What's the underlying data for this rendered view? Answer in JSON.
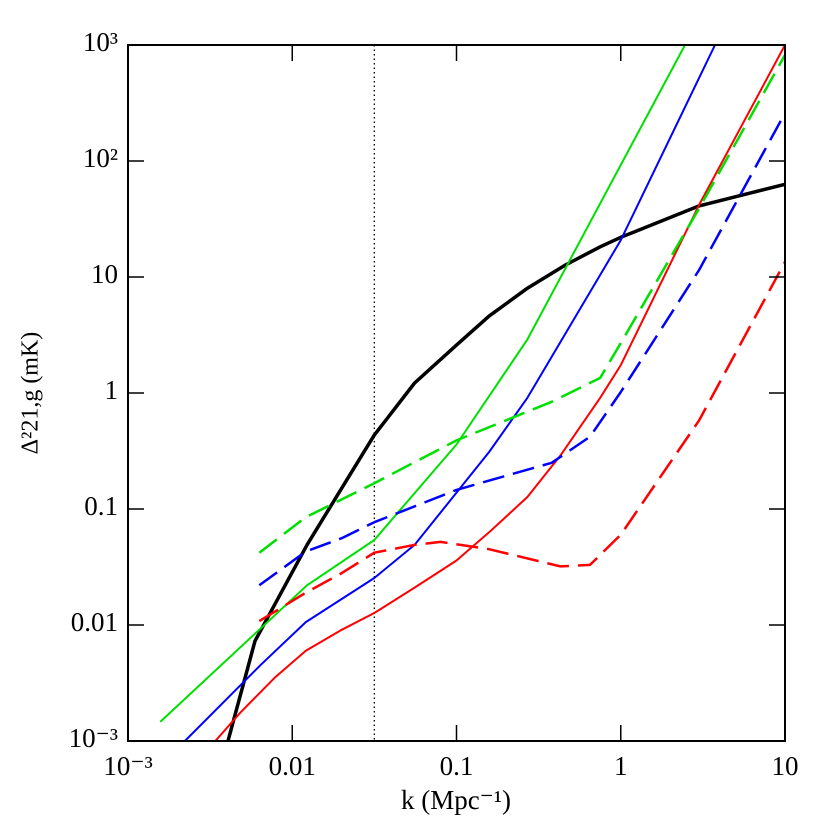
{
  "chart_data": {
    "type": "line",
    "xlabel": "k (Mpc⁻¹)",
    "ylabel": "Δ²21,g (mK)",
    "xscale": "log",
    "yscale": "log",
    "xlim": [
      0.001,
      10
    ],
    "ylim": [
      0.001,
      1000
    ],
    "xticks": [
      {
        "value": 0.001,
        "label": "10⁻³"
      },
      0.01,
      0.1,
      1,
      10
    ],
    "yticks": [
      {
        "value": 0.001,
        "label": "10⁻³"
      },
      0.01,
      0.1,
      1,
      10,
      {
        "value": 100,
        "label": "10²"
      },
      {
        "value": 1000,
        "label": "10³"
      }
    ],
    "vline_x": 0.0316,
    "series": [
      {
        "color": "#000000",
        "width": 3.5,
        "dash": false,
        "x": [
          0.00406,
          0.00593,
          0.0123,
          0.02,
          0.0316,
          0.0556,
          0.1,
          0.158,
          0.27,
          0.46,
          0.75,
          1,
          3.0,
          10
        ],
        "values": [
          0.001,
          0.00728,
          0.049,
          0.151,
          0.434,
          1.22,
          2.59,
          4.6,
          8.0,
          12.7,
          18.2,
          22,
          41,
          63
        ]
      },
      {
        "color": "#00e000",
        "width": 2,
        "dash": false,
        "x": [
          0.00157,
          0.0123,
          0.0316,
          0.1,
          0.27,
          2.46
        ],
        "values": [
          0.00146,
          0.022,
          0.054,
          0.36,
          2.9,
          1000
        ]
      },
      {
        "color": "#0000ff",
        "width": 2,
        "dash": false,
        "x": [
          0.00222,
          0.0064,
          0.0121,
          0.0316,
          0.0556,
          0.158,
          0.27,
          1,
          3.75
        ],
        "values": [
          0.001,
          0.0045,
          0.0106,
          0.0254,
          0.049,
          0.31,
          0.91,
          20.8,
          1000
        ]
      },
      {
        "color": "#ff0000",
        "width": 2,
        "dash": false,
        "x": [
          0.0034,
          0.0048,
          0.0078,
          0.0121,
          0.02,
          0.0316,
          0.0556,
          0.1,
          0.158,
          0.27,
          0.43,
          0.75,
          1,
          3.0,
          10
        ],
        "values": [
          0.001,
          0.00174,
          0.0035,
          0.006,
          0.0091,
          0.0127,
          0.021,
          0.036,
          0.063,
          0.127,
          0.29,
          0.91,
          1.74,
          41.8,
          1000
        ]
      },
      {
        "color": "#00e000",
        "width": 2.5,
        "dash": true,
        "x": [
          0.0063,
          0.0121,
          0.0316,
          0.1,
          0.38,
          0.75,
          1,
          3.0,
          10
        ],
        "values": [
          0.042,
          0.085,
          0.167,
          0.39,
          0.84,
          1.35,
          2.7,
          39,
          820
        ]
      },
      {
        "color": "#0000ff",
        "width": 2.5,
        "dash": true,
        "x": [
          0.0063,
          0.0121,
          0.02,
          0.0316,
          0.1,
          0.38,
          0.65,
          1,
          3.0,
          10
        ],
        "values": [
          0.022,
          0.043,
          0.056,
          0.077,
          0.146,
          0.25,
          0.42,
          1.02,
          11.5,
          259
        ]
      },
      {
        "color": "#ff0000",
        "width": 2.5,
        "dash": true,
        "x": [
          0.0063,
          0.0121,
          0.02,
          0.0316,
          0.0556,
          0.08,
          0.158,
          0.43,
          0.65,
          1,
          3.0,
          10
        ],
        "values": [
          0.0108,
          0.019,
          0.028,
          0.042,
          0.049,
          0.052,
          0.045,
          0.032,
          0.033,
          0.06,
          0.58,
          13.5
        ]
      }
    ]
  }
}
